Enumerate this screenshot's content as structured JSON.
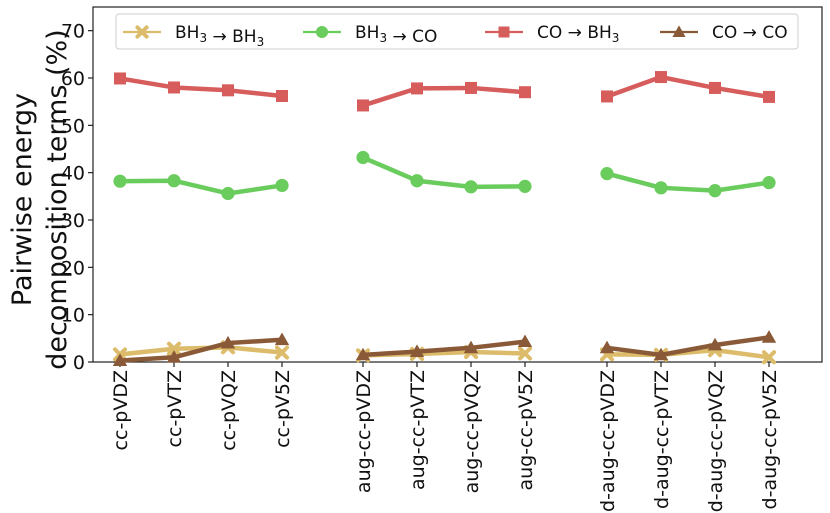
{
  "chart_data": {
    "type": "line",
    "ylabel_lines": [
      "Pairwise energy",
      "decomposition terms (%)"
    ],
    "ylim": [
      0,
      75
    ],
    "yticks": [
      0,
      10,
      20,
      30,
      40,
      50,
      60,
      70
    ],
    "grid": false,
    "legend_position": "top",
    "groups": [
      {
        "categories": [
          "cc-pVDZ",
          "cc-pVTZ",
          "cc-pVQZ",
          "cc-pV5Z"
        ]
      },
      {
        "categories": [
          "aug-cc-pVDZ",
          "aug-cc-pVTZ",
          "aug-cc-pVQZ",
          "aug-cc-pV5Z"
        ]
      },
      {
        "categories": [
          "d-aug-cc-pVDZ",
          "d-aug-cc-pVTZ",
          "d-aug-cc-pVQZ",
          "d-aug-cc-pV5Z"
        ]
      }
    ],
    "series": [
      {
        "legend_from": "BH",
        "legend_to": "BH",
        "color": "#dcbc6a",
        "marker": "x",
        "values": [
          [
            1.6,
            2.8,
            3.1,
            2.0
          ],
          [
            1.4,
            1.7,
            2.1,
            1.8
          ],
          [
            1.6,
            1.5,
            2.5,
            1.0
          ]
        ]
      },
      {
        "legend_from": "BH",
        "legend_to": "CO",
        "color": "#69cc5d",
        "marker": "circle",
        "values": [
          [
            38.2,
            38.3,
            35.6,
            37.3
          ],
          [
            43.2,
            38.3,
            37.0,
            37.1
          ],
          [
            39.8,
            36.8,
            36.2,
            37.9
          ]
        ]
      },
      {
        "legend_from": "CO",
        "legend_to": "BH",
        "color": "#d75c5c",
        "marker": "square",
        "values": [
          [
            59.9,
            58.0,
            57.4,
            56.2
          ],
          [
            54.2,
            57.8,
            57.9,
            57.0
          ],
          [
            56.1,
            60.2,
            57.9,
            56.0
          ]
        ]
      },
      {
        "legend_from": "CO",
        "legend_to": "CO",
        "color": "#8a5a38",
        "marker": "triangle",
        "values": [
          [
            0.3,
            1.0,
            4.0,
            4.7
          ],
          [
            1.5,
            2.2,
            3.0,
            4.3
          ],
          [
            3.0,
            1.5,
            3.6,
            5.2
          ]
        ]
      }
    ]
  }
}
